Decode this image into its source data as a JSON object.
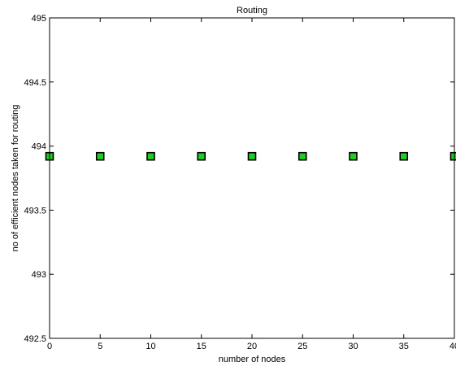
{
  "chart_data": {
    "type": "scatter",
    "title": "Routing",
    "xlabel": "number of nodes",
    "ylabel": "no of efficient nodes taken for routing",
    "xlim": [
      0,
      40
    ],
    "ylim": [
      492.5,
      495
    ],
    "xticks": [
      0,
      5,
      10,
      15,
      20,
      25,
      30,
      35,
      40
    ],
    "yticks": [
      492.5,
      493,
      493.5,
      494,
      494.5,
      495
    ],
    "xtick_labels": [
      "0",
      "5",
      "10",
      "15",
      "20",
      "25",
      "30",
      "35",
      "40"
    ],
    "ytick_labels": [
      "492.5",
      "493",
      "493.5",
      "494",
      "494.5",
      "495"
    ],
    "grid": false,
    "marker": "square",
    "marker_color": "#22cc22",
    "marker_edge_color": "#000000",
    "x": [
      0,
      5,
      10,
      15,
      20,
      25,
      30,
      35,
      40
    ],
    "y": [
      493.92,
      493.92,
      493.92,
      493.92,
      493.92,
      493.92,
      493.92,
      493.92,
      493.92
    ]
  }
}
